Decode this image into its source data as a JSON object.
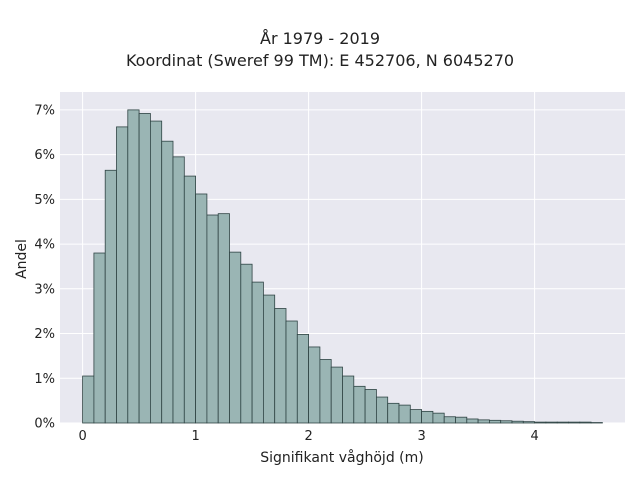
{
  "chart_data": {
    "type": "bar",
    "title": "År 1979 - 2019",
    "subtitle": "Koordinat (Sweref 99 TM): E 452706, N 6045270",
    "xlabel": "Signifikant våghöjd (m)",
    "ylabel": "Andel",
    "xlim": [
      -0.2,
      4.8
    ],
    "ylim": [
      0,
      7.4
    ],
    "x_ticks": [
      0,
      1,
      2,
      3,
      4
    ],
    "y_ticks": [
      0,
      1,
      2,
      3,
      4,
      5,
      6,
      7
    ],
    "y_tick_suffix": "%",
    "grid": true,
    "bar_color": "#9ab5b4",
    "bar_edge_color": "#2f4444",
    "plot_background": "#e8e8f0",
    "bin_width": 0.1,
    "bin_starts": [
      0.0,
      0.1,
      0.2,
      0.3,
      0.4,
      0.5,
      0.6,
      0.7,
      0.8,
      0.9,
      1.0,
      1.1,
      1.2,
      1.3,
      1.4,
      1.5,
      1.6,
      1.7,
      1.8,
      1.9,
      2.0,
      2.1,
      2.2,
      2.3,
      2.4,
      2.5,
      2.6,
      2.7,
      2.8,
      2.9,
      3.0,
      3.1,
      3.2,
      3.3,
      3.4,
      3.5,
      3.6,
      3.7,
      3.8,
      3.9,
      4.0,
      4.1,
      4.2,
      4.3,
      4.4,
      4.5
    ],
    "values": [
      1.05,
      3.8,
      5.65,
      6.62,
      7.0,
      6.92,
      6.75,
      6.3,
      5.95,
      5.52,
      5.12,
      4.65,
      4.68,
      3.82,
      3.55,
      3.15,
      2.86,
      2.56,
      2.28,
      1.98,
      1.7,
      1.42,
      1.25,
      1.05,
      0.82,
      0.75,
      0.58,
      0.44,
      0.4,
      0.3,
      0.26,
      0.22,
      0.14,
      0.13,
      0.09,
      0.07,
      0.06,
      0.05,
      0.04,
      0.03,
      0.02,
      0.02,
      0.02,
      0.02,
      0.02,
      0.01
    ]
  }
}
